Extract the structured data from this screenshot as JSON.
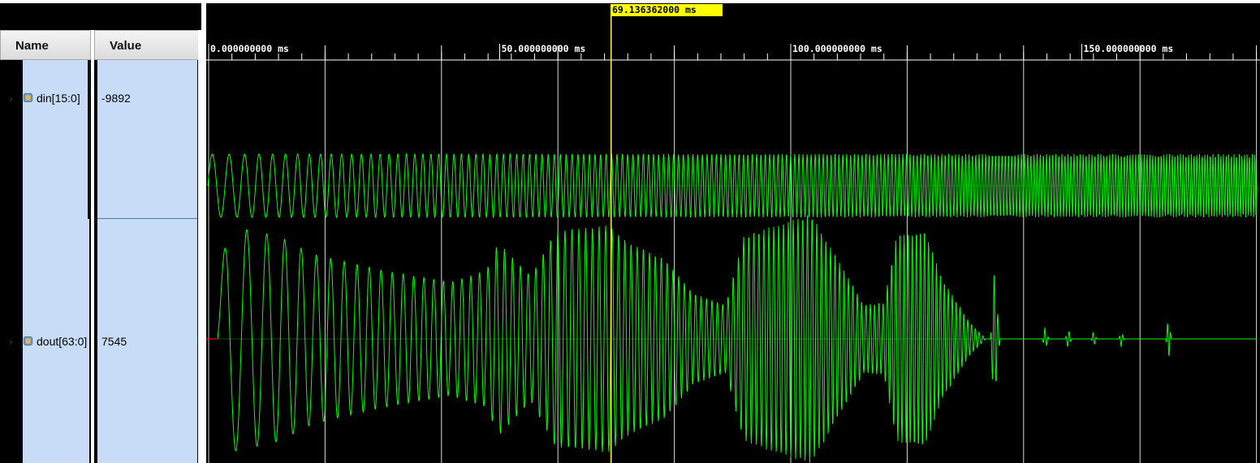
{
  "columns": {
    "name_header": "Name",
    "value_header": "Value"
  },
  "signals": [
    {
      "name": "din[15:0]",
      "value": "-9892",
      "expander": "›",
      "icon": "bus-signal-icon"
    },
    {
      "name": "dout[63:0]",
      "value": "7545",
      "expander": "›",
      "icon": "bus-signal-icon"
    }
  ],
  "time_ruler": {
    "labels": [
      "0.000000000 ms",
      "50.000000000 ms",
      "100.000000000 ms",
      "150.000000000 ms"
    ]
  },
  "cursor": {
    "label": "69.136362000 ms",
    "time_ms": 69.136362
  },
  "colors": {
    "background": "#000000",
    "waveform": "#00ff00",
    "cursor": "#ffff00",
    "grid": "#ffffff",
    "selected_row": "#c8dcf8",
    "zero_marker": "#ff0000"
  }
}
